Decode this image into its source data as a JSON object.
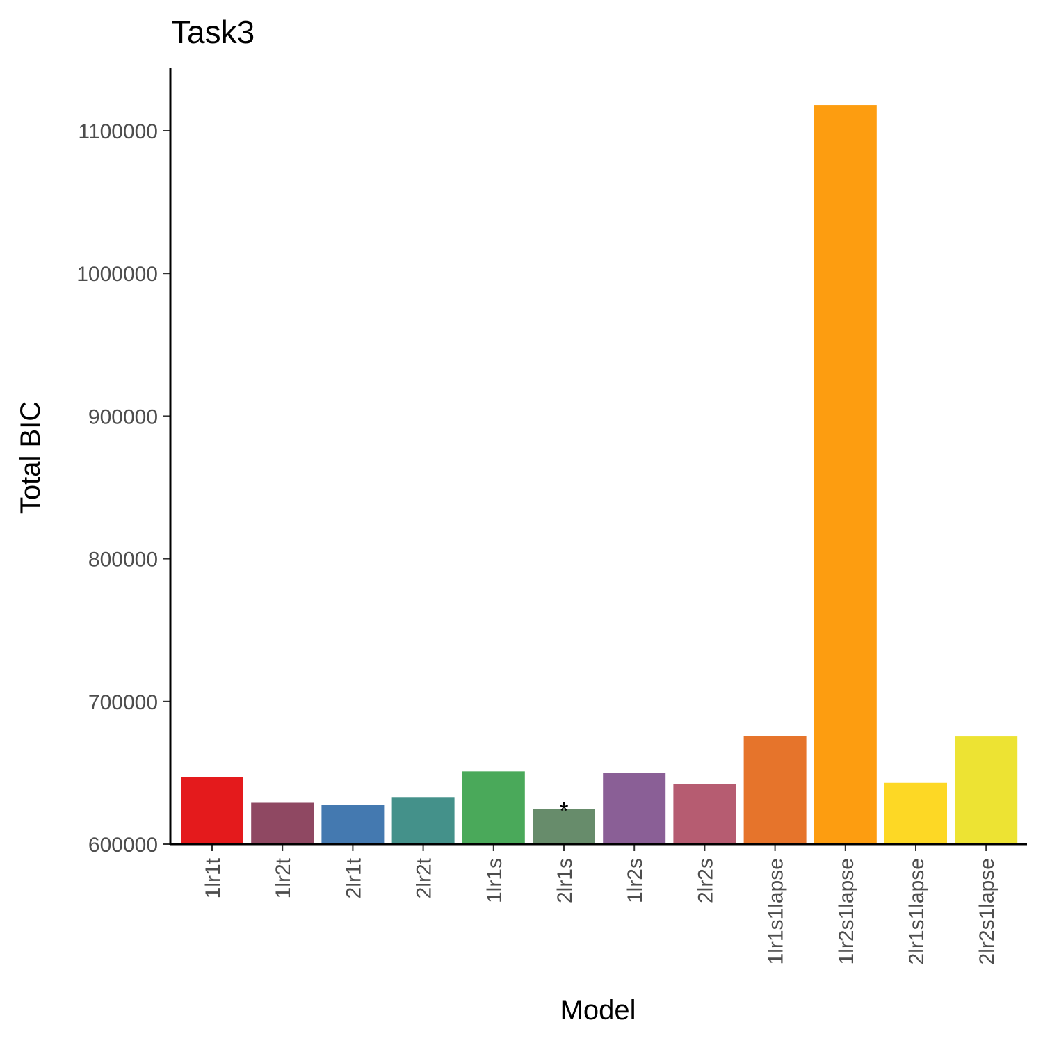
{
  "chart_data": {
    "type": "bar",
    "title": "Task3",
    "xlabel": "Model",
    "ylabel": "Total BIC",
    "ylim": [
      600000,
      1140000
    ],
    "yticks": [
      600000,
      700000,
      800000,
      900000,
      1000000,
      1100000
    ],
    "ytick_labels": [
      "600000",
      "700000",
      "800000",
      "900000",
      "1000000",
      "1100000"
    ],
    "categories": [
      "1lr1t",
      "1lr2t",
      "2lr1t",
      "2lr2t",
      "1lr1s",
      "2lr1s",
      "1lr2s",
      "2lr2s",
      "1lr1s1lapse",
      "1lr2s1lapse",
      "2lr1s1lapse",
      "2lr2s1lapse"
    ],
    "values": [
      647000,
      629000,
      627500,
      633000,
      651000,
      624500,
      650000,
      642000,
      676000,
      1118000,
      643000,
      675500
    ],
    "colors": [
      "#e41a1c",
      "#8f4862",
      "#4479b0",
      "#44918a",
      "#4aa95a",
      "#678c6b",
      "#8a5f96",
      "#b65c71",
      "#e6742b",
      "#fd9d10",
      "#fdd825",
      "#ede333"
    ],
    "annotations": [
      {
        "category": "2lr1s",
        "text": "*"
      }
    ],
    "grid": false,
    "legend": "none"
  }
}
